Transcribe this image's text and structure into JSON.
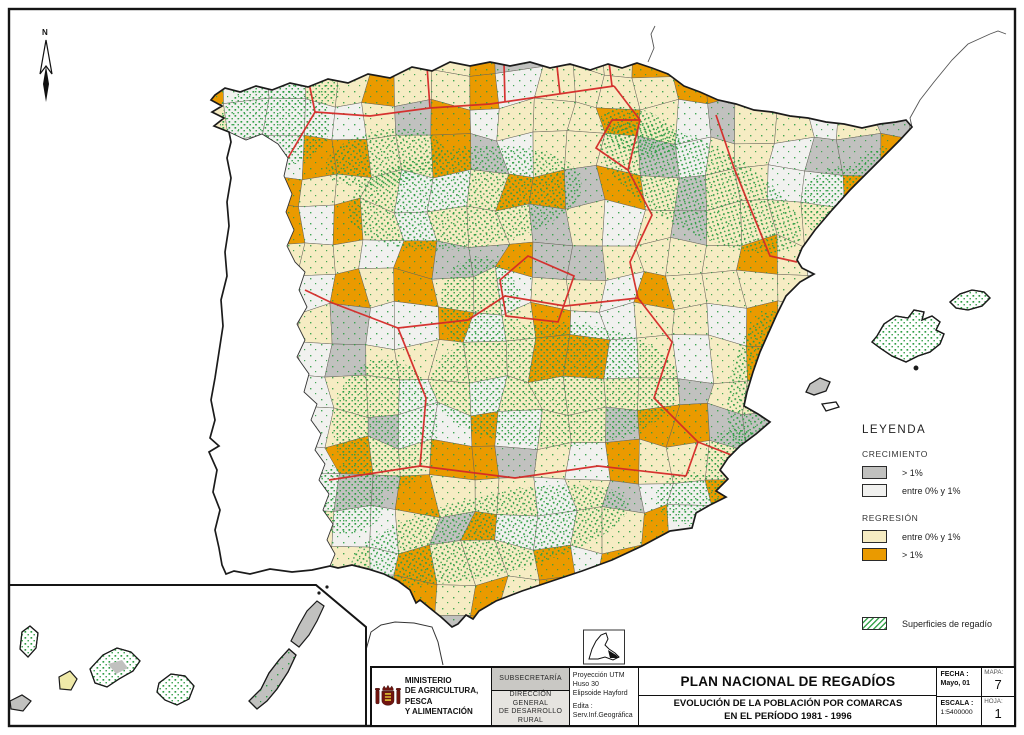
{
  "frame": {
    "north_label": "N"
  },
  "legend": {
    "title": "LEYENDA",
    "growth_title": "CRECIMIENTO",
    "growth_items": [
      {
        "label": "> 1%",
        "color_key": "growth_high"
      },
      {
        "label": "entre 0% y 1%",
        "color_key": "growth_low"
      }
    ],
    "regression_title": "REGRESIÓN",
    "regression_items": [
      {
        "label": "entre 0% y 1%",
        "color_key": "regression_low"
      },
      {
        "label": "> 1%",
        "color_key": "regression_high"
      }
    ],
    "irrigation_label": "Superficies de regadío"
  },
  "title_block": {
    "ministry_line1": "MINISTERIO",
    "ministry_line2": "DE AGRICULTURA, PESCA",
    "ministry_line3": "Y ALIMENTACIÓN",
    "subsecretaria": "SUBSECRETARÍA",
    "direccion_line1": "DIRECCIÓN GENERAL",
    "direccion_line2": "DE DESARROLLO RURAL",
    "projection_line1": "Proyección UTM",
    "projection_line2": "Huso 30",
    "projection_line3": "Elipsoide Hayford",
    "projection_line4": "Edita :",
    "projection_line5": "Serv.Inf.Geográfica",
    "title": "PLAN NACIONAL DE REGADÍOS",
    "subtitle_line1": "EVOLUCIÓN DE LA POBLACIÓN POR COMARCAS",
    "subtitle_line2": "EN EL PERÍODO 1981 - 1996",
    "fecha_label": "FECHA :",
    "fecha_value": "Mayo, 01",
    "escala_label": "ESCALA :",
    "escala_value": "1:5400000",
    "mapa_label": "MAPA:",
    "mapa_value": "7",
    "hoja_label": "HOJA:",
    "hoja_value": "1"
  },
  "map_colors": {
    "regression_low": "#F6ECC3",
    "regression_high": "#EA9A00",
    "growth_low": "#F1F1EF",
    "growth_high": "#C1C1BF",
    "irrigation_green": "#2F9E45",
    "community_boundary": "#D42A28",
    "coastline": "#1B1B1B",
    "ministry_yellow": "#F2E33C",
    "gomera_yellow": "#EFE9A8"
  }
}
